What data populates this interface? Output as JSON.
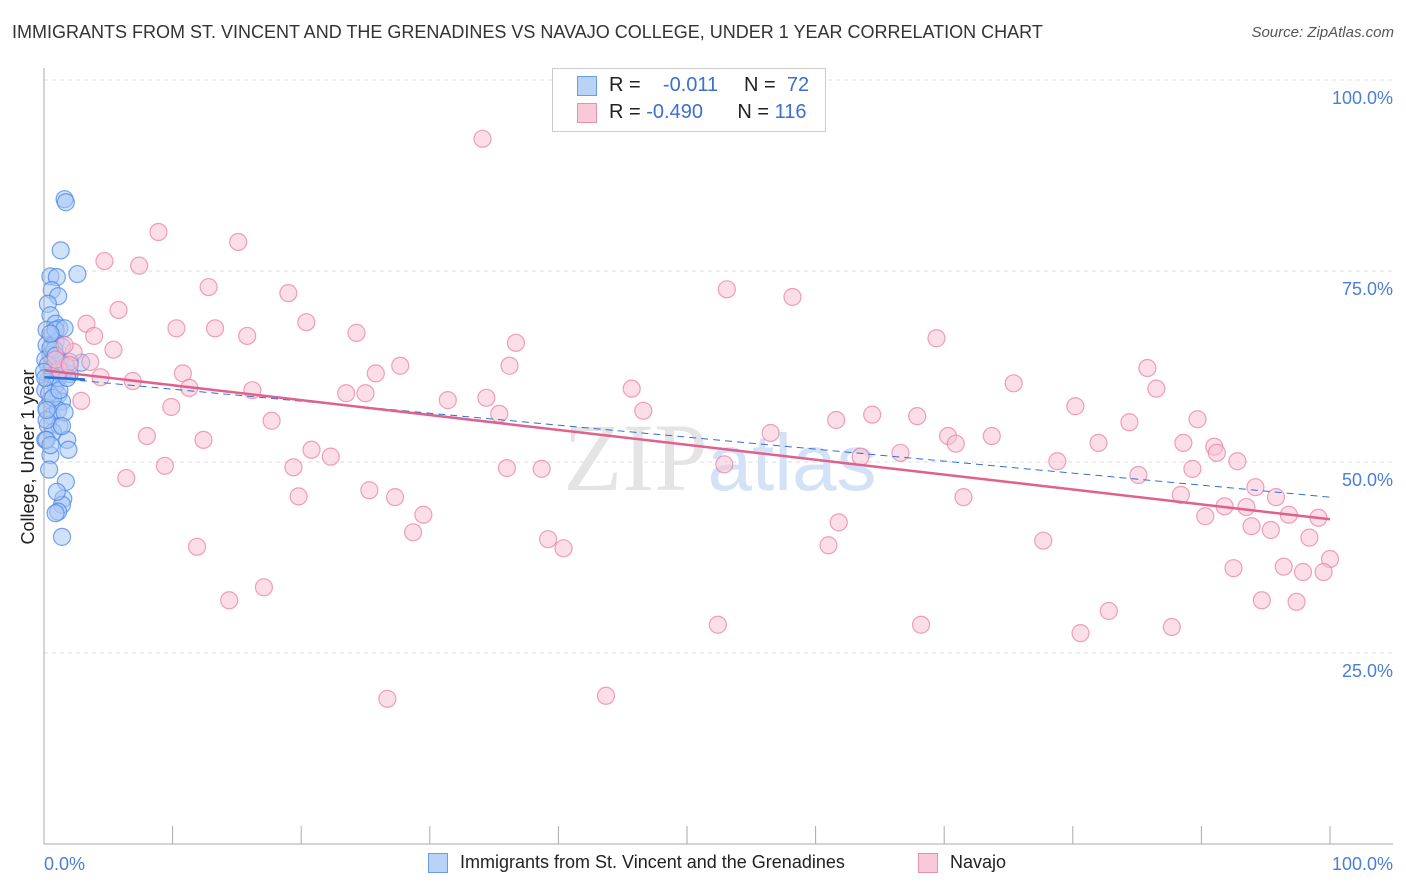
{
  "title": "IMMIGRANTS FROM ST. VINCENT AND THE GRENADINES VS NAVAJO COLLEGE, UNDER 1 YEAR CORRELATION CHART",
  "source": "Source: ZipAtlas.com",
  "legend": {
    "blue": {
      "r_label": "R =",
      "r": "-0.011",
      "n_label": "N =",
      "n": "72"
    },
    "pink": {
      "r_label": "R =",
      "r": "-0.490",
      "n_label": "N =",
      "n": "116"
    }
  },
  "bottom_legend": {
    "blue": "Immigrants from St. Vincent and the Grenadines",
    "pink": "Navajo"
  },
  "colors": {
    "blue": "#4a86e8",
    "pink": "#e87aa0",
    "blue_fill": "#a9c8f5",
    "pink_fill": "#f7c3d3",
    "pink_line": "#e0608e",
    "blue_line": "#2f6fd6"
  },
  "chart_data": {
    "type": "scatter",
    "title": "IMMIGRANTS FROM ST. VINCENT AND THE GRENADINES VS NAVAJO COLLEGE, UNDER 1 YEAR CORRELATION CHART",
    "xlabel": "",
    "ylabel": "College, Under 1 year",
    "xlim": [
      0,
      100
    ],
    "ylim": [
      0,
      100
    ],
    "x_tick_labels": [
      "0.0%",
      "100.0%"
    ],
    "y_tick_labels": [
      "100.0%",
      "75.0%",
      "50.0%",
      "25.0%"
    ],
    "y_ticks": [
      100,
      75,
      50,
      25
    ],
    "watermark": "ZIPatlas",
    "series": [
      {
        "name": "Immigrants from St. Vincent and the Grenadines",
        "color": "blue",
        "trend": {
          "solid": [
            [
              0,
              61.1
            ],
            [
              3.2,
              60.8
            ]
          ],
          "dashed": [
            [
              0,
              61.1
            ],
            [
              100,
              45.4
            ]
          ]
        },
        "points": [
          [
            1.6,
            84.4
          ],
          [
            1.7,
            84.0
          ],
          [
            1.3,
            77.7
          ],
          [
            2.6,
            74.6
          ],
          [
            0.5,
            74.3
          ],
          [
            1.0,
            74.2
          ],
          [
            0.6,
            72.5
          ],
          [
            1.1,
            71.7
          ],
          [
            0.3,
            70.7
          ],
          [
            0.5,
            69.2
          ],
          [
            0.9,
            68.1
          ],
          [
            1.2,
            67.5
          ],
          [
            0.6,
            66.5
          ],
          [
            0.2,
            65.3
          ],
          [
            0.9,
            65.7
          ],
          [
            1.4,
            65.1
          ],
          [
            0.5,
            64.0
          ],
          [
            1.2,
            63.4
          ],
          [
            2.9,
            63.0
          ],
          [
            0.8,
            62.0
          ],
          [
            1.5,
            61.8
          ],
          [
            2.0,
            61.5
          ],
          [
            0.3,
            60.7
          ],
          [
            0.9,
            60.1
          ],
          [
            0.1,
            59.4
          ],
          [
            1.1,
            58.8
          ],
          [
            0.5,
            58.1
          ],
          [
            0.2,
            57.1
          ],
          [
            1.4,
            57.9
          ],
          [
            0.6,
            56.0
          ],
          [
            0.3,
            54.8
          ],
          [
            1.2,
            54.7
          ],
          [
            1.8,
            52.9
          ],
          [
            1.9,
            51.6
          ],
          [
            0.5,
            50.9
          ],
          [
            1.7,
            47.4
          ],
          [
            1.5,
            45.2
          ],
          [
            1.4,
            44.4
          ],
          [
            1.1,
            43.5
          ],
          [
            0.9,
            43.3
          ],
          [
            1.4,
            40.2
          ],
          [
            0.2,
            67.3
          ],
          [
            0.1,
            63.4
          ],
          [
            0.6,
            62.3
          ],
          [
            1.0,
            61.8
          ],
          [
            0.4,
            59.0
          ],
          [
            0.7,
            53.9
          ],
          [
            0.1,
            52.9
          ],
          [
            1.1,
            56.8
          ],
          [
            1.6,
            56.5
          ],
          [
            0.2,
            55.5
          ],
          [
            0.8,
            64.7
          ],
          [
            0.3,
            62.7
          ],
          [
            1.1,
            61.0
          ],
          [
            1.7,
            62.6
          ],
          [
            0.0,
            61.8
          ],
          [
            0.5,
            64.9
          ],
          [
            0.7,
            58.4
          ],
          [
            0.2,
            56.8
          ],
          [
            1.2,
            59.4
          ],
          [
            2.0,
            63.1
          ],
          [
            0.9,
            67.3
          ],
          [
            1.6,
            67.5
          ],
          [
            0.5,
            66.8
          ],
          [
            0.2,
            52.9
          ],
          [
            1.4,
            54.7
          ],
          [
            0.4,
            49.0
          ],
          [
            1.0,
            46.1
          ],
          [
            0.5,
            52.2
          ],
          [
            0.1,
            61.0
          ],
          [
            1.8,
            61.0
          ],
          [
            0.9,
            63.9
          ]
        ]
      },
      {
        "name": "Navajo",
        "color": "pink",
        "trend": {
          "solid": [
            [
              0,
              62.0
            ],
            [
              100,
              42.5
            ]
          ]
        },
        "points": [
          [
            34.1,
            92.3
          ],
          [
            8.9,
            80.1
          ],
          [
            15.1,
            78.8
          ],
          [
            4.7,
            76.3
          ],
          [
            7.4,
            75.7
          ],
          [
            12.8,
            72.9
          ],
          [
            19.0,
            72.1
          ],
          [
            53.1,
            72.6
          ],
          [
            58.2,
            71.6
          ],
          [
            5.8,
            69.9
          ],
          [
            20.4,
            68.3
          ],
          [
            3.3,
            68.1
          ],
          [
            10.3,
            67.5
          ],
          [
            13.3,
            67.5
          ],
          [
            15.8,
            66.5
          ],
          [
            24.3,
            66.9
          ],
          [
            3.9,
            66.5
          ],
          [
            36.7,
            65.6
          ],
          [
            69.4,
            66.2
          ],
          [
            5.4,
            64.7
          ],
          [
            2.3,
            64.4
          ],
          [
            27.7,
            62.6
          ],
          [
            25.8,
            61.6
          ],
          [
            10.8,
            61.6
          ],
          [
            36.2,
            62.6
          ],
          [
            85.8,
            62.3
          ],
          [
            4.4,
            61.1
          ],
          [
            6.9,
            60.6
          ],
          [
            11.3,
            59.7
          ],
          [
            16.2,
            59.4
          ],
          [
            23.5,
            59.0
          ],
          [
            25.0,
            59.0
          ],
          [
            75.4,
            60.3
          ],
          [
            45.7,
            59.6
          ],
          [
            86.5,
            59.6
          ],
          [
            2.9,
            58.0
          ],
          [
            31.4,
            58.1
          ],
          [
            34.4,
            58.4
          ],
          [
            9.9,
            57.2
          ],
          [
            46.6,
            56.7
          ],
          [
            35.4,
            56.3
          ],
          [
            80.2,
            57.3
          ],
          [
            17.7,
            55.4
          ],
          [
            61.6,
            55.5
          ],
          [
            64.4,
            56.2
          ],
          [
            67.9,
            56.0
          ],
          [
            89.7,
            55.6
          ],
          [
            84.4,
            55.2
          ],
          [
            8.0,
            53.4
          ],
          [
            12.4,
            52.9
          ],
          [
            56.5,
            53.8
          ],
          [
            70.3,
            53.4
          ],
          [
            73.7,
            53.4
          ],
          [
            70.9,
            52.4
          ],
          [
            82.0,
            52.5
          ],
          [
            88.6,
            52.5
          ],
          [
            20.8,
            51.6
          ],
          [
            91.0,
            52.0
          ],
          [
            91.2,
            51.2
          ],
          [
            22.3,
            50.7
          ],
          [
            63.5,
            50.7
          ],
          [
            66.6,
            51.2
          ],
          [
            78.8,
            50.1
          ],
          [
            92.8,
            50.1
          ],
          [
            9.4,
            49.5
          ],
          [
            19.4,
            49.3
          ],
          [
            36.0,
            49.2
          ],
          [
            38.7,
            49.1
          ],
          [
            52.9,
            49.7
          ],
          [
            6.4,
            47.9
          ],
          [
            85.1,
            48.3
          ],
          [
            89.3,
            49.1
          ],
          [
            94.2,
            46.7
          ],
          [
            88.4,
            45.7
          ],
          [
            25.3,
            46.3
          ],
          [
            19.8,
            45.5
          ],
          [
            27.3,
            45.4
          ],
          [
            71.5,
            45.4
          ],
          [
            95.8,
            45.4
          ],
          [
            91.8,
            44.2
          ],
          [
            93.5,
            44.1
          ],
          [
            90.3,
            42.9
          ],
          [
            29.5,
            43.1
          ],
          [
            61.8,
            42.1
          ],
          [
            96.8,
            43.1
          ],
          [
            99.1,
            42.7
          ],
          [
            93.9,
            41.6
          ],
          [
            95.4,
            41.1
          ],
          [
            28.7,
            40.8
          ],
          [
            39.2,
            39.9
          ],
          [
            77.7,
            39.7
          ],
          [
            40.4,
            38.7
          ],
          [
            61.0,
            39.1
          ],
          [
            98.4,
            40.1
          ],
          [
            11.9,
            38.9
          ],
          [
            100.0,
            37.3
          ],
          [
            92.5,
            36.1
          ],
          [
            96.4,
            36.3
          ],
          [
            97.9,
            35.6
          ],
          [
            99.5,
            35.6
          ],
          [
            17.1,
            33.6
          ],
          [
            14.4,
            31.9
          ],
          [
            94.7,
            31.9
          ],
          [
            97.4,
            31.7
          ],
          [
            82.8,
            30.5
          ],
          [
            52.4,
            28.7
          ],
          [
            68.2,
            28.7
          ],
          [
            87.7,
            28.4
          ],
          [
            80.6,
            27.6
          ],
          [
            43.7,
            19.4
          ],
          [
            26.7,
            19.0
          ],
          [
            1.2,
            62.0
          ],
          [
            0.9,
            63.4
          ],
          [
            1.6,
            65.3
          ],
          [
            2.0,
            62.7
          ],
          [
            3.6,
            63.1
          ]
        ]
      }
    ]
  }
}
